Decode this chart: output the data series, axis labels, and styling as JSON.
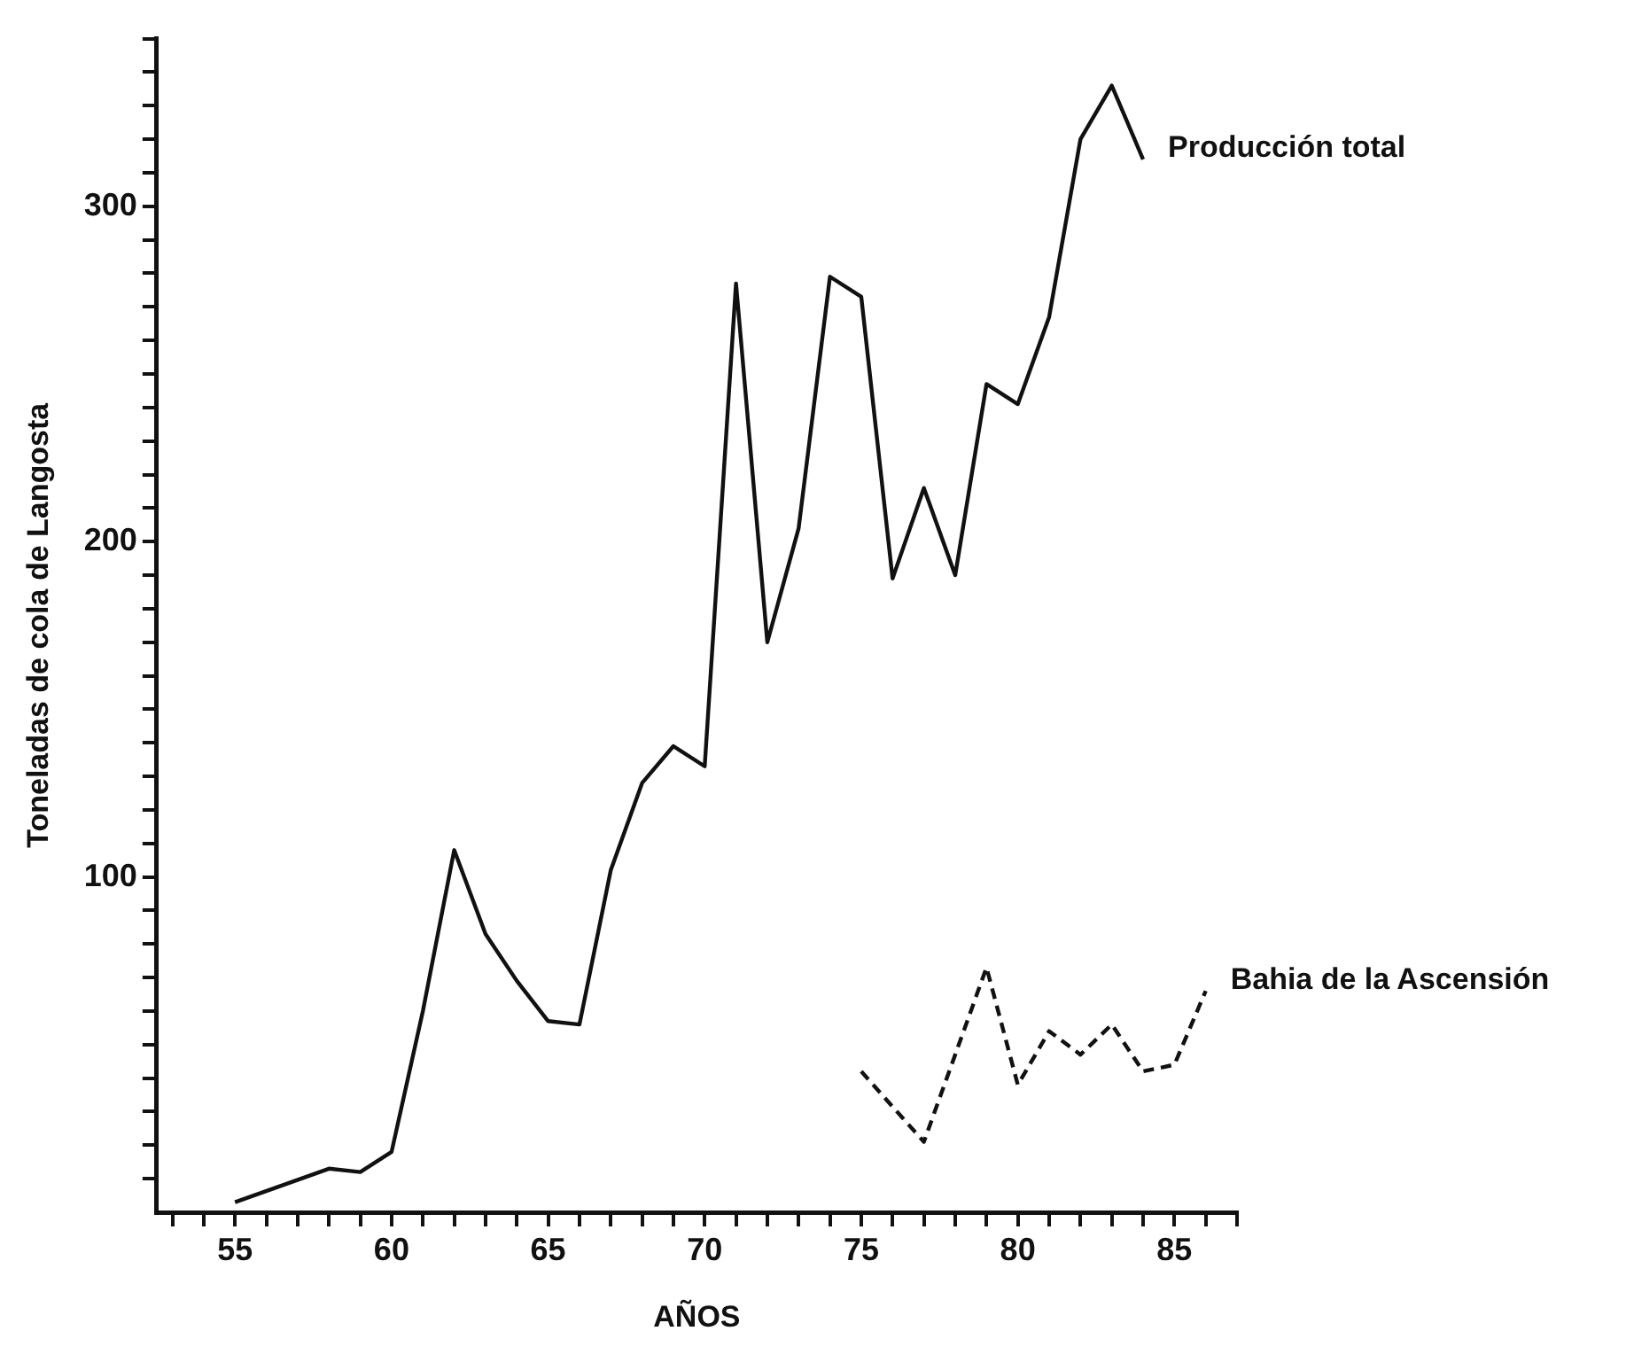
{
  "chart_data": {
    "type": "line",
    "xlabel": "AÑOS",
    "ylabel": "Toneladas de cola de Langosta",
    "xlim": [
      52.5,
      87
    ],
    "ylim": [
      0,
      350
    ],
    "xticks": [
      {
        "value": 53,
        "label": null
      },
      {
        "value": 54,
        "label": null
      },
      55,
      {
        "value": 56,
        "label": null
      },
      {
        "value": 57,
        "label": null
      },
      {
        "value": 58,
        "label": null
      },
      {
        "value": 59,
        "label": null
      },
      60,
      {
        "value": 61,
        "label": null
      },
      {
        "value": 62,
        "label": null
      },
      {
        "value": 63,
        "label": null
      },
      {
        "value": 64,
        "label": null
      },
      65,
      {
        "value": 66,
        "label": null
      },
      {
        "value": 67,
        "label": null
      },
      {
        "value": 68,
        "label": null
      },
      {
        "value": 69,
        "label": null
      },
      70,
      {
        "value": 71,
        "label": null
      },
      {
        "value": 72,
        "label": null
      },
      {
        "value": 73,
        "label": null
      },
      {
        "value": 74,
        "label": null
      },
      75,
      {
        "value": 76,
        "label": null
      },
      {
        "value": 77,
        "label": null
      },
      {
        "value": 78,
        "label": null
      },
      {
        "value": 79,
        "label": null
      },
      80,
      {
        "value": 81,
        "label": null
      },
      {
        "value": 82,
        "label": null
      },
      {
        "value": 83,
        "label": null
      },
      {
        "value": 84,
        "label": null
      },
      85,
      {
        "value": 86,
        "label": null
      },
      {
        "value": 87,
        "label": null
      }
    ],
    "yticks": [
      {
        "value": 10,
        "label": null
      },
      {
        "value": 20,
        "label": null
      },
      {
        "value": 30,
        "label": null
      },
      {
        "value": 40,
        "label": null
      },
      {
        "value": 50,
        "label": null
      },
      {
        "value": 60,
        "label": null
      },
      {
        "value": 70,
        "label": null
      },
      {
        "value": 80,
        "label": null
      },
      {
        "value": 90,
        "label": null
      },
      100,
      {
        "value": 110,
        "label": null
      },
      {
        "value": 120,
        "label": null
      },
      {
        "value": 130,
        "label": null
      },
      {
        "value": 140,
        "label": null
      },
      {
        "value": 150,
        "label": null
      },
      {
        "value": 160,
        "label": null
      },
      {
        "value": 170,
        "label": null
      },
      {
        "value": 180,
        "label": null
      },
      {
        "value": 190,
        "label": null
      },
      200,
      {
        "value": 210,
        "label": null
      },
      {
        "value": 220,
        "label": null
      },
      {
        "value": 230,
        "label": null
      },
      {
        "value": 240,
        "label": null
      },
      {
        "value": 250,
        "label": null
      },
      {
        "value": 260,
        "label": null
      },
      {
        "value": 270,
        "label": null
      },
      {
        "value": 280,
        "label": null
      },
      {
        "value": 290,
        "label": null
      },
      300,
      {
        "value": 310,
        "label": null
      },
      {
        "value": 320,
        "label": null
      },
      {
        "value": 330,
        "label": null
      },
      {
        "value": 340,
        "label": null
      },
      {
        "value": 350,
        "label": null
      }
    ],
    "grid": false,
    "legend": false,
    "marker": "none",
    "series": [
      {
        "name": "Producción total",
        "color": "#111111",
        "line_style": "solid",
        "x": [
          55,
          58,
          59,
          60,
          61,
          62,
          63,
          64,
          65,
          66,
          67,
          68,
          69,
          70,
          71,
          72,
          73,
          74,
          75,
          76,
          77,
          78,
          79,
          80,
          81,
          82,
          83,
          84
        ],
        "values": [
          3,
          13,
          12,
          18,
          60,
          108,
          83,
          69,
          57,
          56,
          102,
          128,
          139,
          133,
          277,
          170,
          204,
          279,
          273,
          189,
          216,
          190,
          247,
          241,
          267,
          320,
          336,
          314
        ]
      },
      {
        "name": "Bahia de la Ascensión",
        "color": "#111111",
        "line_style": "dashed",
        "x": [
          75,
          77,
          78,
          79,
          80,
          81,
          82,
          83,
          84,
          85,
          86
        ],
        "values": [
          42,
          21,
          47,
          73,
          38,
          54,
          47,
          56,
          42,
          44,
          66
        ]
      }
    ]
  }
}
